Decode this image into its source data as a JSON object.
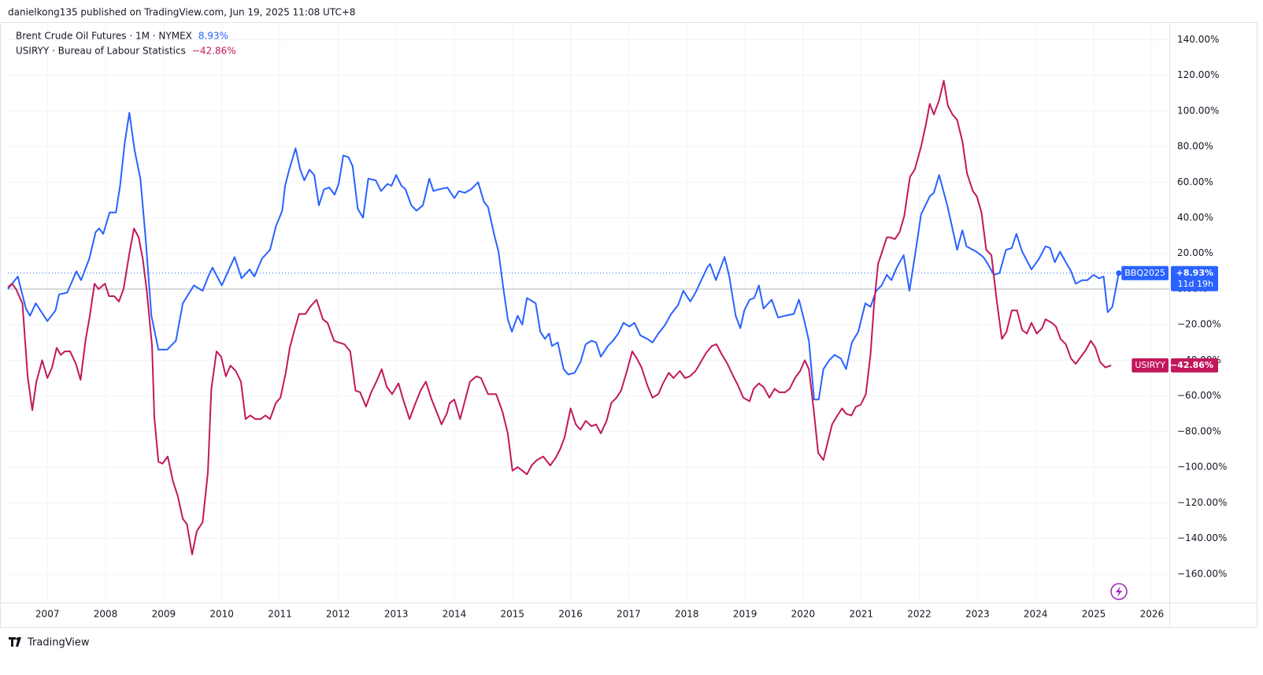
{
  "header": "danielkong135 published on TradingView.com, Jun 19, 2025 11:08 UTC+8",
  "footer": "TradingView",
  "chart_data": {
    "type": "line",
    "xlim": [
      2006.32,
      2026.3
    ],
    "xticks": [
      2007,
      2008,
      2009,
      2010,
      2011,
      2012,
      2013,
      2014,
      2015,
      2016,
      2017,
      2018,
      2019,
      2020,
      2021,
      2022,
      2023,
      2024,
      2025,
      2026
    ],
    "ylim": [
      -176,
      149
    ],
    "yticks": [
      {
        "value": 140,
        "label": "140.00%"
      },
      {
        "value": 120,
        "label": "120.00%"
      },
      {
        "value": 100,
        "label": "100.00%"
      },
      {
        "value": 80,
        "label": "80.00%"
      },
      {
        "value": 60,
        "label": "60.00%"
      },
      {
        "value": 40,
        "label": "40.00%"
      },
      {
        "value": 20,
        "label": "20.00%"
      },
      {
        "value": 0,
        "label": "0.00%"
      },
      {
        "value": -20,
        "label": "−20.00%"
      },
      {
        "value": -40,
        "label": "−40.00%"
      },
      {
        "value": -60,
        "label": "−60.00%"
      },
      {
        "value": -80,
        "label": "−80.00%"
      },
      {
        "value": -100,
        "label": "−100.00%"
      },
      {
        "value": -120,
        "label": "−120.00%"
      },
      {
        "value": -140,
        "label": "−140.00%"
      },
      {
        "value": -160,
        "label": "−160.00%"
      }
    ],
    "grid": true,
    "baseline": 0,
    "series": [
      {
        "name": "Brent Crude Oil Futures · 1M · NYMEX",
        "color": "#2962ff",
        "legend_value": {
          "value": 8.93,
          "label": "8.93%"
        },
        "tag": {
          "symbol": "BBQ2025",
          "value": 8.93,
          "label": "+8.93%",
          "countdown": "11d 19h"
        },
        "x": [
          2006.32,
          2006.49,
          2006.63,
          2006.7,
          2006.8,
          2007.0,
          2007.14,
          2007.2,
          2007.34,
          2007.5,
          2007.58,
          2007.72,
          2007.83,
          2007.89,
          2007.96,
          2008.07,
          2008.18,
          2008.25,
          2008.33,
          2008.41,
          2008.5,
          2008.6,
          2008.69,
          2008.79,
          2008.91,
          2009.06,
          2009.21,
          2009.33,
          2009.52,
          2009.67,
          2009.78,
          2009.84,
          2010.0,
          2010.22,
          2010.34,
          2010.48,
          2010.56,
          2010.69,
          2010.83,
          2010.93,
          2011.04,
          2011.09,
          2011.16,
          2011.27,
          2011.35,
          2011.42,
          2011.51,
          2011.59,
          2011.67,
          2011.76,
          2011.85,
          2011.94,
          2012.01,
          2012.09,
          2012.18,
          2012.25,
          2012.34,
          2012.43,
          2012.52,
          2012.65,
          2012.74,
          2012.85,
          2012.92,
          2013.0,
          2013.09,
          2013.16,
          2013.26,
          2013.35,
          2013.46,
          2013.57,
          2013.64,
          2013.74,
          2013.88,
          2014.0,
          2014.08,
          2014.18,
          2014.29,
          2014.41,
          2014.51,
          2014.58,
          2014.69,
          2014.76,
          2014.85,
          2014.92,
          2014.99,
          2015.09,
          2015.17,
          2015.25,
          2015.4,
          2015.48,
          2015.56,
          2015.63,
          2015.68,
          2015.78,
          2015.88,
          2015.96,
          2016.07,
          2016.17,
          2016.26,
          2016.36,
          2016.44,
          2016.52,
          2016.64,
          2016.73,
          2016.82,
          2016.91,
          2017.01,
          2017.1,
          2017.2,
          2017.32,
          2017.41,
          2017.51,
          2017.63,
          2017.73,
          2017.85,
          2017.94,
          2018.06,
          2018.15,
          2018.25,
          2018.35,
          2018.4,
          2018.5,
          2018.65,
          2018.73,
          2018.84,
          2018.92,
          2018.99,
          2019.08,
          2019.16,
          2019.24,
          2019.32,
          2019.46,
          2019.57,
          2019.69,
          2019.84,
          2019.93,
          2020.03,
          2020.1,
          2020.19,
          2020.27,
          2020.35,
          2020.45,
          2020.54,
          2020.65,
          2020.74,
          2020.84,
          2020.95,
          2021.07,
          2021.16,
          2021.26,
          2021.35,
          2021.44,
          2021.52,
          2021.61,
          2021.73,
          2021.83,
          2021.94,
          2022.03,
          2022.18,
          2022.25,
          2022.34,
          2022.48,
          2022.57,
          2022.65,
          2022.74,
          2022.81,
          2022.98,
          2023.1,
          2023.18,
          2023.28,
          2023.38,
          2023.49,
          2023.59,
          2023.67,
          2023.77,
          2023.93,
          2024.06,
          2024.17,
          2024.25,
          2024.33,
          2024.42,
          2024.52,
          2024.61,
          2024.69,
          2024.8,
          2024.89,
          2025.0,
          2025.09,
          2025.17,
          2025.24,
          2025.32,
          2025.43
        ],
        "values": [
          0,
          7,
          -11,
          -15,
          -8,
          -18,
          -12,
          -3,
          -2,
          10,
          5,
          17,
          32,
          34,
          31,
          43,
          43,
          58,
          82,
          99,
          78,
          62,
          28,
          -15,
          -34,
          -34,
          -29,
          -8,
          2,
          -1,
          8,
          12,
          2,
          18,
          6,
          11,
          7,
          17,
          22,
          35,
          44,
          58,
          67,
          79,
          67,
          61,
          67,
          64,
          47,
          56,
          57,
          53,
          59,
          75,
          74,
          69,
          45,
          40,
          62,
          61,
          55,
          59,
          58,
          64,
          58,
          56,
          47,
          44,
          47,
          62,
          55,
          56,
          57,
          51,
          55,
          54,
          56,
          60,
          49,
          46,
          30,
          21,
          -1,
          -17,
          -24,
          -15,
          -20,
          -5,
          -8,
          -24,
          -28,
          -25,
          -32,
          -30,
          -45,
          -48,
          -47,
          -41,
          -31,
          -29,
          -30,
          -38,
          -32,
          -29,
          -25,
          -19,
          -21,
          -19,
          -26,
          -28,
          -30,
          -25,
          -20,
          -14,
          -9,
          -1,
          -7,
          -2,
          5,
          12,
          14,
          5,
          18,
          7,
          -15,
          -22,
          -12,
          -6,
          -5,
          2,
          -11,
          -6,
          -16,
          -15,
          -14,
          -6,
          -19,
          -29,
          -62,
          -62,
          -45,
          -40,
          -37,
          -39,
          -45,
          -30,
          -24,
          -8,
          -10,
          -1,
          2,
          8,
          5,
          12,
          19,
          -1,
          22,
          42,
          52,
          54,
          64,
          47,
          34,
          22,
          33,
          24,
          21,
          18,
          14,
          8,
          9,
          22,
          23,
          31,
          21,
          11,
          17,
          24,
          23,
          15,
          21,
          15,
          10,
          3,
          5,
          5,
          8,
          6,
          7,
          -13,
          -10,
          8.93
        ]
      },
      {
        "name": "USIRYY · Bureau of Labour Statistics",
        "color": "#c2185b",
        "legend_value": {
          "value": -42.86,
          "label": "−42.86%"
        },
        "tag": {
          "symbol": "USIRYY",
          "value": -42.86,
          "label": "−42.86%"
        },
        "x": [
          2006.32,
          2006.39,
          2006.46,
          2006.57,
          2006.66,
          2006.74,
          2006.81,
          2006.91,
          2007.0,
          2007.08,
          2007.16,
          2007.23,
          2007.3,
          2007.39,
          2007.49,
          2007.57,
          2007.66,
          2007.73,
          2007.81,
          2007.88,
          2007.99,
          2008.06,
          2008.15,
          2008.23,
          2008.31,
          2008.41,
          2008.49,
          2008.57,
          2008.64,
          2008.71,
          2008.8,
          2008.84,
          2008.91,
          2008.98,
          2009.07,
          2009.16,
          2009.24,
          2009.33,
          2009.4,
          2009.49,
          2009.57,
          2009.67,
          2009.76,
          2009.82,
          2009.91,
          2009.99,
          2010.07,
          2010.15,
          2010.24,
          2010.33,
          2010.41,
          2010.49,
          2010.58,
          2010.67,
          2010.75,
          2010.83,
          2010.93,
          2011.01,
          2011.1,
          2011.17,
          2011.25,
          2011.33,
          2011.44,
          2011.52,
          2011.63,
          2011.74,
          2011.82,
          2011.93,
          2012.01,
          2012.11,
          2012.21,
          2012.3,
          2012.38,
          2012.48,
          2012.57,
          2012.66,
          2012.75,
          2012.84,
          2012.93,
          2013.04,
          2013.12,
          2013.23,
          2013.32,
          2013.42,
          2013.51,
          2013.61,
          2013.72,
          2013.78,
          2013.87,
          2013.92,
          2014.0,
          2014.1,
          2014.18,
          2014.27,
          2014.38,
          2014.46,
          2014.58,
          2014.72,
          2014.83,
          2014.92,
          2015.0,
          2015.09,
          2015.17,
          2015.25,
          2015.33,
          2015.42,
          2015.53,
          2015.65,
          2015.74,
          2015.82,
          2015.9,
          2016.0,
          2016.09,
          2016.17,
          2016.26,
          2016.36,
          2016.44,
          2016.52,
          2016.62,
          2016.7,
          2016.79,
          2016.87,
          2016.97,
          2017.06,
          2017.14,
          2017.22,
          2017.32,
          2017.41,
          2017.51,
          2017.59,
          2017.69,
          2017.77,
          2017.88,
          2017.97,
          2018.05,
          2018.15,
          2018.24,
          2018.33,
          2018.43,
          2018.51,
          2018.59,
          2018.7,
          2018.8,
          2018.88,
          2018.97,
          2019.08,
          2019.15,
          2019.24,
          2019.32,
          2019.42,
          2019.51,
          2019.59,
          2019.69,
          2019.77,
          2019.86,
          2019.95,
          2020.03,
          2020.1,
          2020.18,
          2020.26,
          2020.35,
          2020.43,
          2020.5,
          2020.59,
          2020.67,
          2020.74,
          2020.83,
          2020.91,
          2020.99,
          2021.08,
          2021.16,
          2021.22,
          2021.29,
          2021.35,
          2021.44,
          2021.5,
          2021.58,
          2021.66,
          2021.74,
          2021.84,
          2021.92,
          2022.03,
          2022.11,
          2022.18,
          2022.25,
          2022.34,
          2022.42,
          2022.49,
          2022.57,
          2022.65,
          2022.74,
          2022.82,
          2022.92,
          2022.99,
          2023.07,
          2023.15,
          2023.24,
          2023.33,
          2023.42,
          2023.5,
          2023.59,
          2023.68,
          2023.77,
          2023.85,
          2023.93,
          2024.02,
          2024.11,
          2024.17,
          2024.28,
          2024.35,
          2024.43,
          2024.52,
          2024.61,
          2024.69,
          2024.78,
          2024.87,
          2024.95,
          2025.03,
          2025.11,
          2025.2,
          2025.3
        ],
        "values": [
          1,
          3,
          0,
          -8,
          -49,
          -68,
          -52,
          -40,
          -50,
          -44,
          -33,
          -37,
          -35,
          -35,
          -42,
          -51,
          -28,
          -15,
          3,
          0,
          3,
          -4,
          -4,
          -7,
          0,
          20,
          34,
          29,
          17,
          -1,
          -32,
          -72,
          -97,
          -98,
          -94,
          -108,
          -116,
          -129,
          -132,
          -149,
          -136,
          -131,
          -103,
          -56,
          -35,
          -38,
          -49,
          -43,
          -46,
          -52,
          -73,
          -71,
          -73,
          -73,
          -71,
          -73,
          -64,
          -61,
          -47,
          -33,
          -23,
          -14,
          -14,
          -10,
          -6,
          -17,
          -19,
          -29,
          -30,
          -31,
          -35,
          -57,
          -58,
          -66,
          -58,
          -52,
          -45,
          -55,
          -59,
          -53,
          -62,
          -73,
          -65,
          -57,
          -52,
          -62,
          -71,
          -76,
          -70,
          -64,
          -62,
          -73,
          -63,
          -52,
          -49,
          -50,
          -59,
          -59,
          -69,
          -81,
          -102,
          -100,
          -102,
          -104,
          -99,
          -96,
          -94,
          -99,
          -95,
          -90,
          -83,
          -67,
          -76,
          -79,
          -74,
          -77,
          -76,
          -81,
          -74,
          -64,
          -61,
          -57,
          -46,
          -35,
          -39,
          -44,
          -54,
          -61,
          -59,
          -53,
          -47,
          -50,
          -46,
          -50,
          -49,
          -46,
          -41,
          -36,
          -32,
          -31,
          -36,
          -42,
          -49,
          -54,
          -61,
          -63,
          -56,
          -53,
          -55,
          -61,
          -56,
          -58,
          -58,
          -56,
          -50,
          -46,
          -40,
          -45,
          -67,
          -92,
          -96,
          -85,
          -76,
          -71,
          -67,
          -70,
          -71,
          -66,
          -65,
          -59,
          -37,
          -9,
          14,
          20,
          29,
          29,
          28,
          32,
          41,
          63,
          67,
          80,
          92,
          104,
          98,
          106,
          117,
          103,
          98,
          95,
          83,
          65,
          55,
          52,
          43,
          22,
          19,
          -6,
          -28,
          -24,
          -12,
          -12,
          -23,
          -25,
          -19,
          -25,
          -22,
          -17,
          -19,
          -21,
          -28,
          -31,
          -39,
          -42,
          -38,
          -34,
          -29,
          -33,
          -41,
          -44,
          -42.86
        ]
      }
    ]
  }
}
